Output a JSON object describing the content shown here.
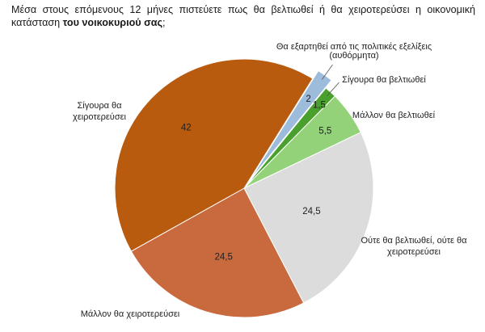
{
  "question": {
    "text": "Μέσα στους επόμενους 12 μήνες πιστεύετε πως θα βελτιωθεί ή θα χειροτερεύσει η οικονομική κατάσταση ",
    "bold": "του νοικοκυριού σας",
    "end": ";"
  },
  "chart_data": {
    "type": "pie",
    "title": "Μέσα στους επόμενους 12 μήνες πιστεύετε πως θα βελτιωθεί ή θα χειροτερεύσει η οικονομική κατάσταση του νοικοκυριού σας;",
    "start_angle_deg": 32,
    "direction": "clockwise",
    "slices": [
      {
        "label": "Θα εξαρτηθεί από τις πολιτικές εξελίξεις (αυθόρμητα)",
        "value": 2,
        "color": "#9dbbdb",
        "exploded": true
      },
      {
        "label": "Σίγουρα θα βελτιωθεί",
        "value": 1.5,
        "color": "#4aa02c",
        "exploded": false
      },
      {
        "label": "Μάλλον θα βελτιωθεί",
        "value": 5.5,
        "color": "#93d279",
        "exploded": false
      },
      {
        "label": "Ούτε θα βελτιωθεί, ούτε θα χειροτερεύσει",
        "value": 24.5,
        "color": "#dcdcdc",
        "exploded": false
      },
      {
        "label": "Μάλλον θα χειροτερεύσει",
        "value": 24.5,
        "color": "#c96a3e",
        "exploded": false
      },
      {
        "label": "Σίγουρα θα χειροτερεύσει",
        "value": 42,
        "color": "#b95b0f",
        "exploded": false
      }
    ]
  }
}
